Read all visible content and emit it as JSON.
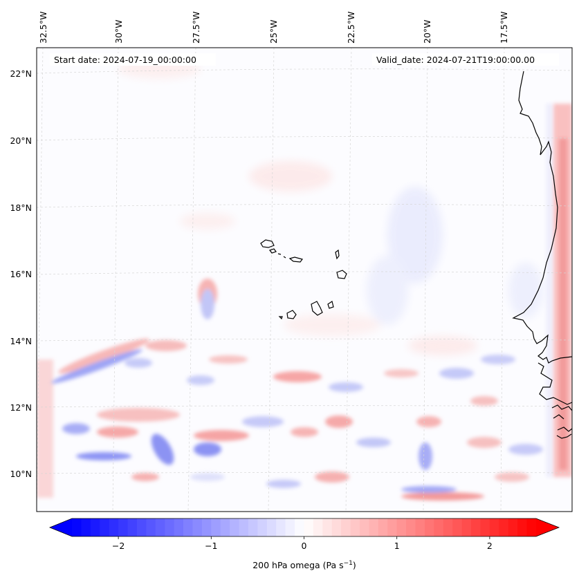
{
  "map": {
    "start_date_label": "Start date: 2024-07-19_00:00:00",
    "valid_date_label": "Valid_date: 2024-07-21T19:00:00.00",
    "lon_labels": [
      "32.5°W",
      "30°W",
      "27.5°W",
      "25°W",
      "22.5°W",
      "20°W",
      "17.5°W"
    ],
    "lat_labels": [
      "22°N",
      "20°N",
      "18°N",
      "16°N",
      "14°N",
      "12°N",
      "10°N"
    ],
    "field": "200 hPa omega",
    "units": "Pa s⁻¹"
  },
  "colorbar": {
    "label_main": "200 hPa omega (Pa s",
    "label_exp": "−1",
    "label_tail": ")",
    "ticks": [
      "−2",
      "−1",
      "0",
      "1",
      "2"
    ],
    "tick_values": [
      -2,
      -1,
      0,
      1,
      2
    ],
    "min": -2.5,
    "max": 2.5,
    "colormap": "bwr",
    "color_low": "#0000ff",
    "color_mid": "#ffffff",
    "color_high": "#ff0000"
  }
}
